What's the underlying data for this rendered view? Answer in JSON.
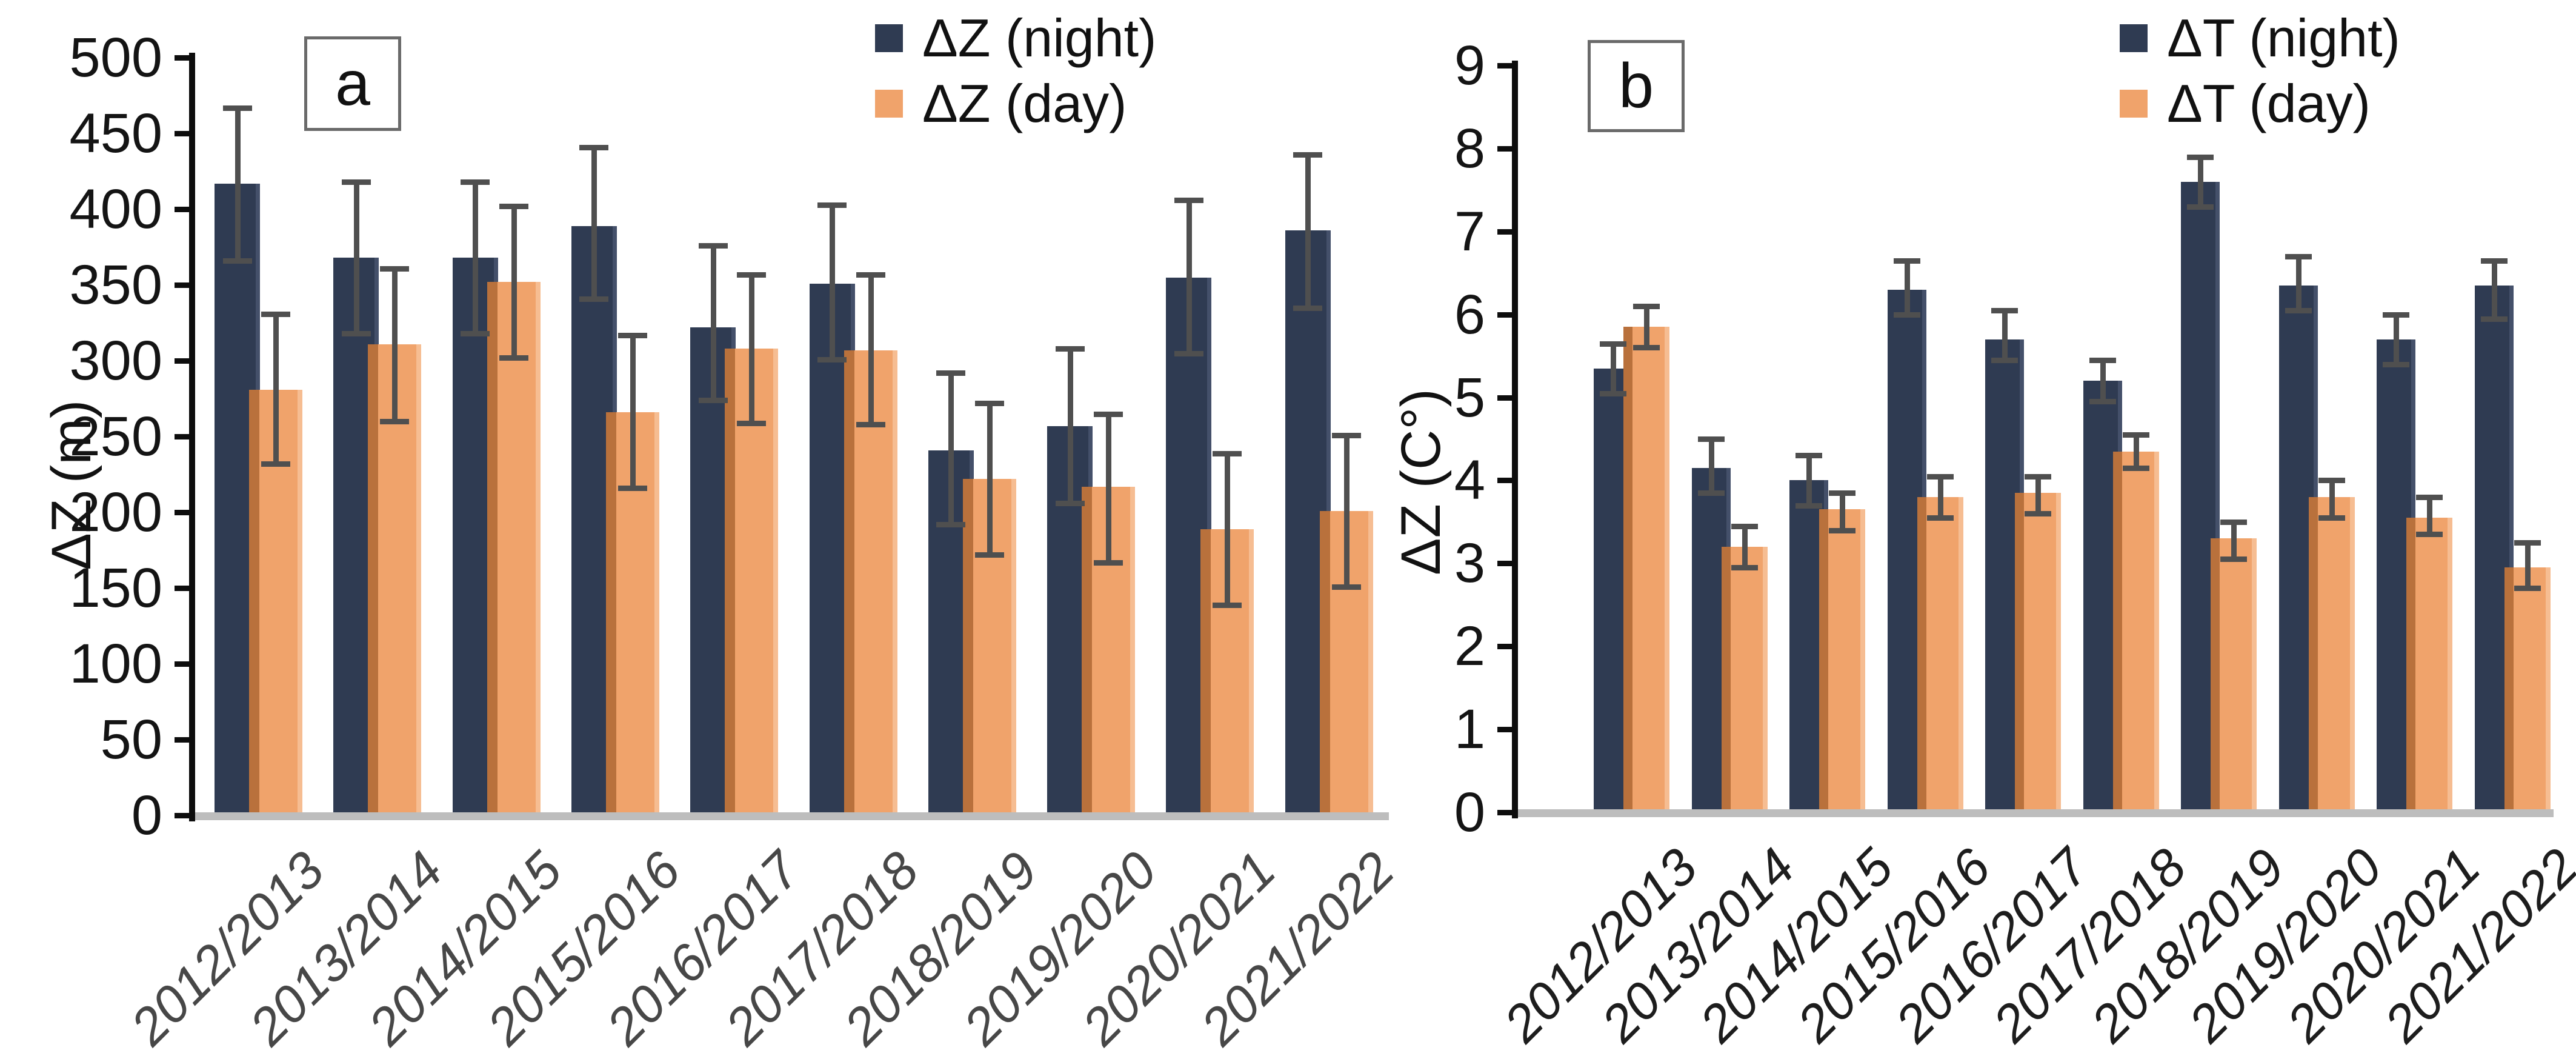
{
  "colors": {
    "night": "#2f3b52",
    "night_edge": "#44506a",
    "day": "#f0a36b",
    "day_overlap": "#b9713c",
    "day_edge": "#f6bd92",
    "error": "#4f4f4f",
    "axis": "#0d0d0d",
    "baseline": "#bdbdbd",
    "tick_text": "#141414",
    "legend_text": "#111111",
    "x_label_a": "#474747",
    "x_label_b": "#1d1d1d",
    "panel_border": "#6a6a6a"
  },
  "chart_data": [
    {
      "type": "bar",
      "panel_label": "a",
      "title": "",
      "xlabel": "",
      "ylabel": "ΔZ (m)",
      "ylim": [
        0,
        500
      ],
      "ytick_step": 50,
      "grid": false,
      "legend_position": "top-center",
      "error_bars": true,
      "categories": [
        "2012/2013",
        "2013/2014",
        "2014/2015",
        "2015/2016",
        "2016/2017",
        "2017/2018",
        "2018/2019",
        "2019/2020",
        "2020/2021",
        "2021/2022"
      ],
      "series": [
        {
          "name": "ΔZ (night)",
          "color_key": "night",
          "values": [
            417,
            368,
            368,
            389,
            322,
            351,
            241,
            257,
            355,
            386
          ],
          "error_low": [
            366,
            318,
            318,
            341,
            274,
            301,
            192,
            206,
            305,
            335
          ],
          "error_high": [
            467,
            418,
            418,
            441,
            376,
            403,
            292,
            308,
            406,
            436
          ]
        },
        {
          "name": "ΔZ (day)",
          "color_key": "day",
          "values": [
            281,
            311,
            352,
            266,
            308,
            307,
            222,
            217,
            189,
            201
          ],
          "error_low": [
            232,
            260,
            302,
            216,
            259,
            258,
            172,
            167,
            139,
            151
          ],
          "error_high": [
            331,
            361,
            402,
            317,
            357,
            357,
            272,
            265,
            239,
            251
          ]
        }
      ]
    },
    {
      "type": "bar",
      "panel_label": "b",
      "title": "",
      "xlabel": "",
      "ylabel": "ΔZ (C°)",
      "ylim": [
        0,
        9
      ],
      "ytick_step": 1,
      "grid": false,
      "legend_position": "top-center",
      "error_bars": true,
      "categories": [
        "2012/2013",
        "2013/2014",
        "2014/2015",
        "2015/2016",
        "2016/2017",
        "2017/2018",
        "2018/2019",
        "2019/2020",
        "2020/2021",
        "2021/2022"
      ],
      "series": [
        {
          "name": "ΔT (night)",
          "color_key": "night",
          "values": [
            5.35,
            4.15,
            4.0,
            6.3,
            5.7,
            5.2,
            7.6,
            6.35,
            5.7,
            6.35
          ],
          "error_low": [
            5.05,
            3.85,
            3.7,
            6.0,
            5.45,
            4.95,
            7.3,
            6.05,
            5.4,
            5.95
          ],
          "error_high": [
            5.65,
            4.5,
            4.3,
            6.65,
            6.05,
            5.45,
            7.9,
            6.7,
            6.0,
            6.65
          ]
        },
        {
          "name": "ΔT (day)",
          "color_key": "day",
          "values": [
            5.85,
            3.2,
            3.65,
            3.8,
            3.85,
            4.35,
            3.3,
            3.8,
            3.55,
            2.95
          ],
          "error_low": [
            5.6,
            2.95,
            3.4,
            3.55,
            3.6,
            4.15,
            3.05,
            3.55,
            3.35,
            2.7
          ],
          "error_high": [
            6.1,
            3.45,
            3.85,
            4.05,
            4.05,
            4.55,
            3.5,
            4.0,
            3.8,
            3.25
          ]
        }
      ]
    }
  ]
}
